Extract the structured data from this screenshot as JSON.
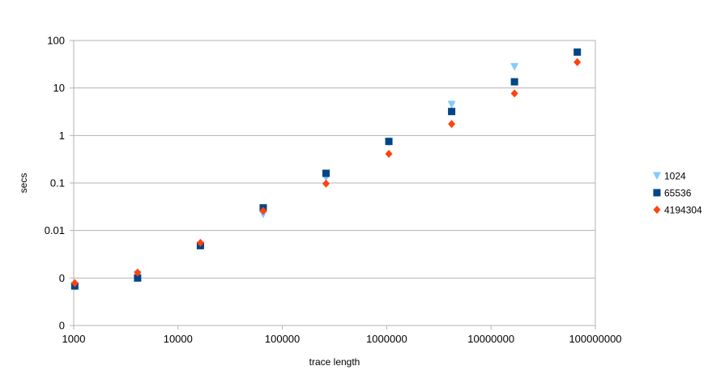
{
  "chart_data": {
    "type": "scatter",
    "title": "",
    "xlabel": "trace length",
    "ylabel": "secs",
    "x_scale": "log",
    "y_scale": "log",
    "xlim": [
      1000,
      100000000
    ],
    "ylim": [
      0.0001,
      100
    ],
    "x_tick_values": [
      1000,
      10000,
      100000,
      1000000,
      10000000,
      100000000
    ],
    "x_tick_labels": [
      "1000",
      "10000",
      "100000",
      "1000000",
      "10000000",
      "100000000"
    ],
    "y_tick_values": [
      0.0001,
      0.001,
      0.01,
      0.1,
      1,
      10,
      100
    ],
    "y_tick_labels": [
      "0",
      "0",
      "0.01",
      "0.1",
      "1",
      "10",
      "100"
    ],
    "grid": "horizontal",
    "legend_position": "right",
    "series": [
      {
        "name": "1024",
        "marker": "triangle-down",
        "color": "#83caff",
        "points": [
          [
            1024,
            0.00068
          ],
          [
            4096,
            0.0012
          ],
          [
            16384,
            0.0048
          ],
          [
            65536,
            0.022
          ],
          [
            262144,
            0.13
          ],
          [
            1048576,
            0.72
          ],
          [
            4194304,
            4.5
          ],
          [
            16777216,
            28
          ]
        ]
      },
      {
        "name": "65536",
        "marker": "square",
        "color": "#004586",
        "points": [
          [
            1024,
            0.00068
          ],
          [
            4096,
            0.001
          ],
          [
            16384,
            0.0048
          ],
          [
            65536,
            0.03
          ],
          [
            262144,
            0.16
          ],
          [
            1048576,
            0.75
          ],
          [
            4194304,
            3.2
          ],
          [
            16777216,
            13.5
          ],
          [
            67108864,
            57
          ]
        ]
      },
      {
        "name": "4194304",
        "marker": "diamond",
        "color": "#ff420e",
        "points": [
          [
            1024,
            0.00078
          ],
          [
            4096,
            0.0013
          ],
          [
            16384,
            0.0055
          ],
          [
            65536,
            0.026
          ],
          [
            262144,
            0.097
          ],
          [
            1048576,
            0.41
          ],
          [
            4194304,
            1.75
          ],
          [
            16777216,
            7.7
          ],
          [
            67108864,
            35
          ]
        ]
      }
    ]
  }
}
